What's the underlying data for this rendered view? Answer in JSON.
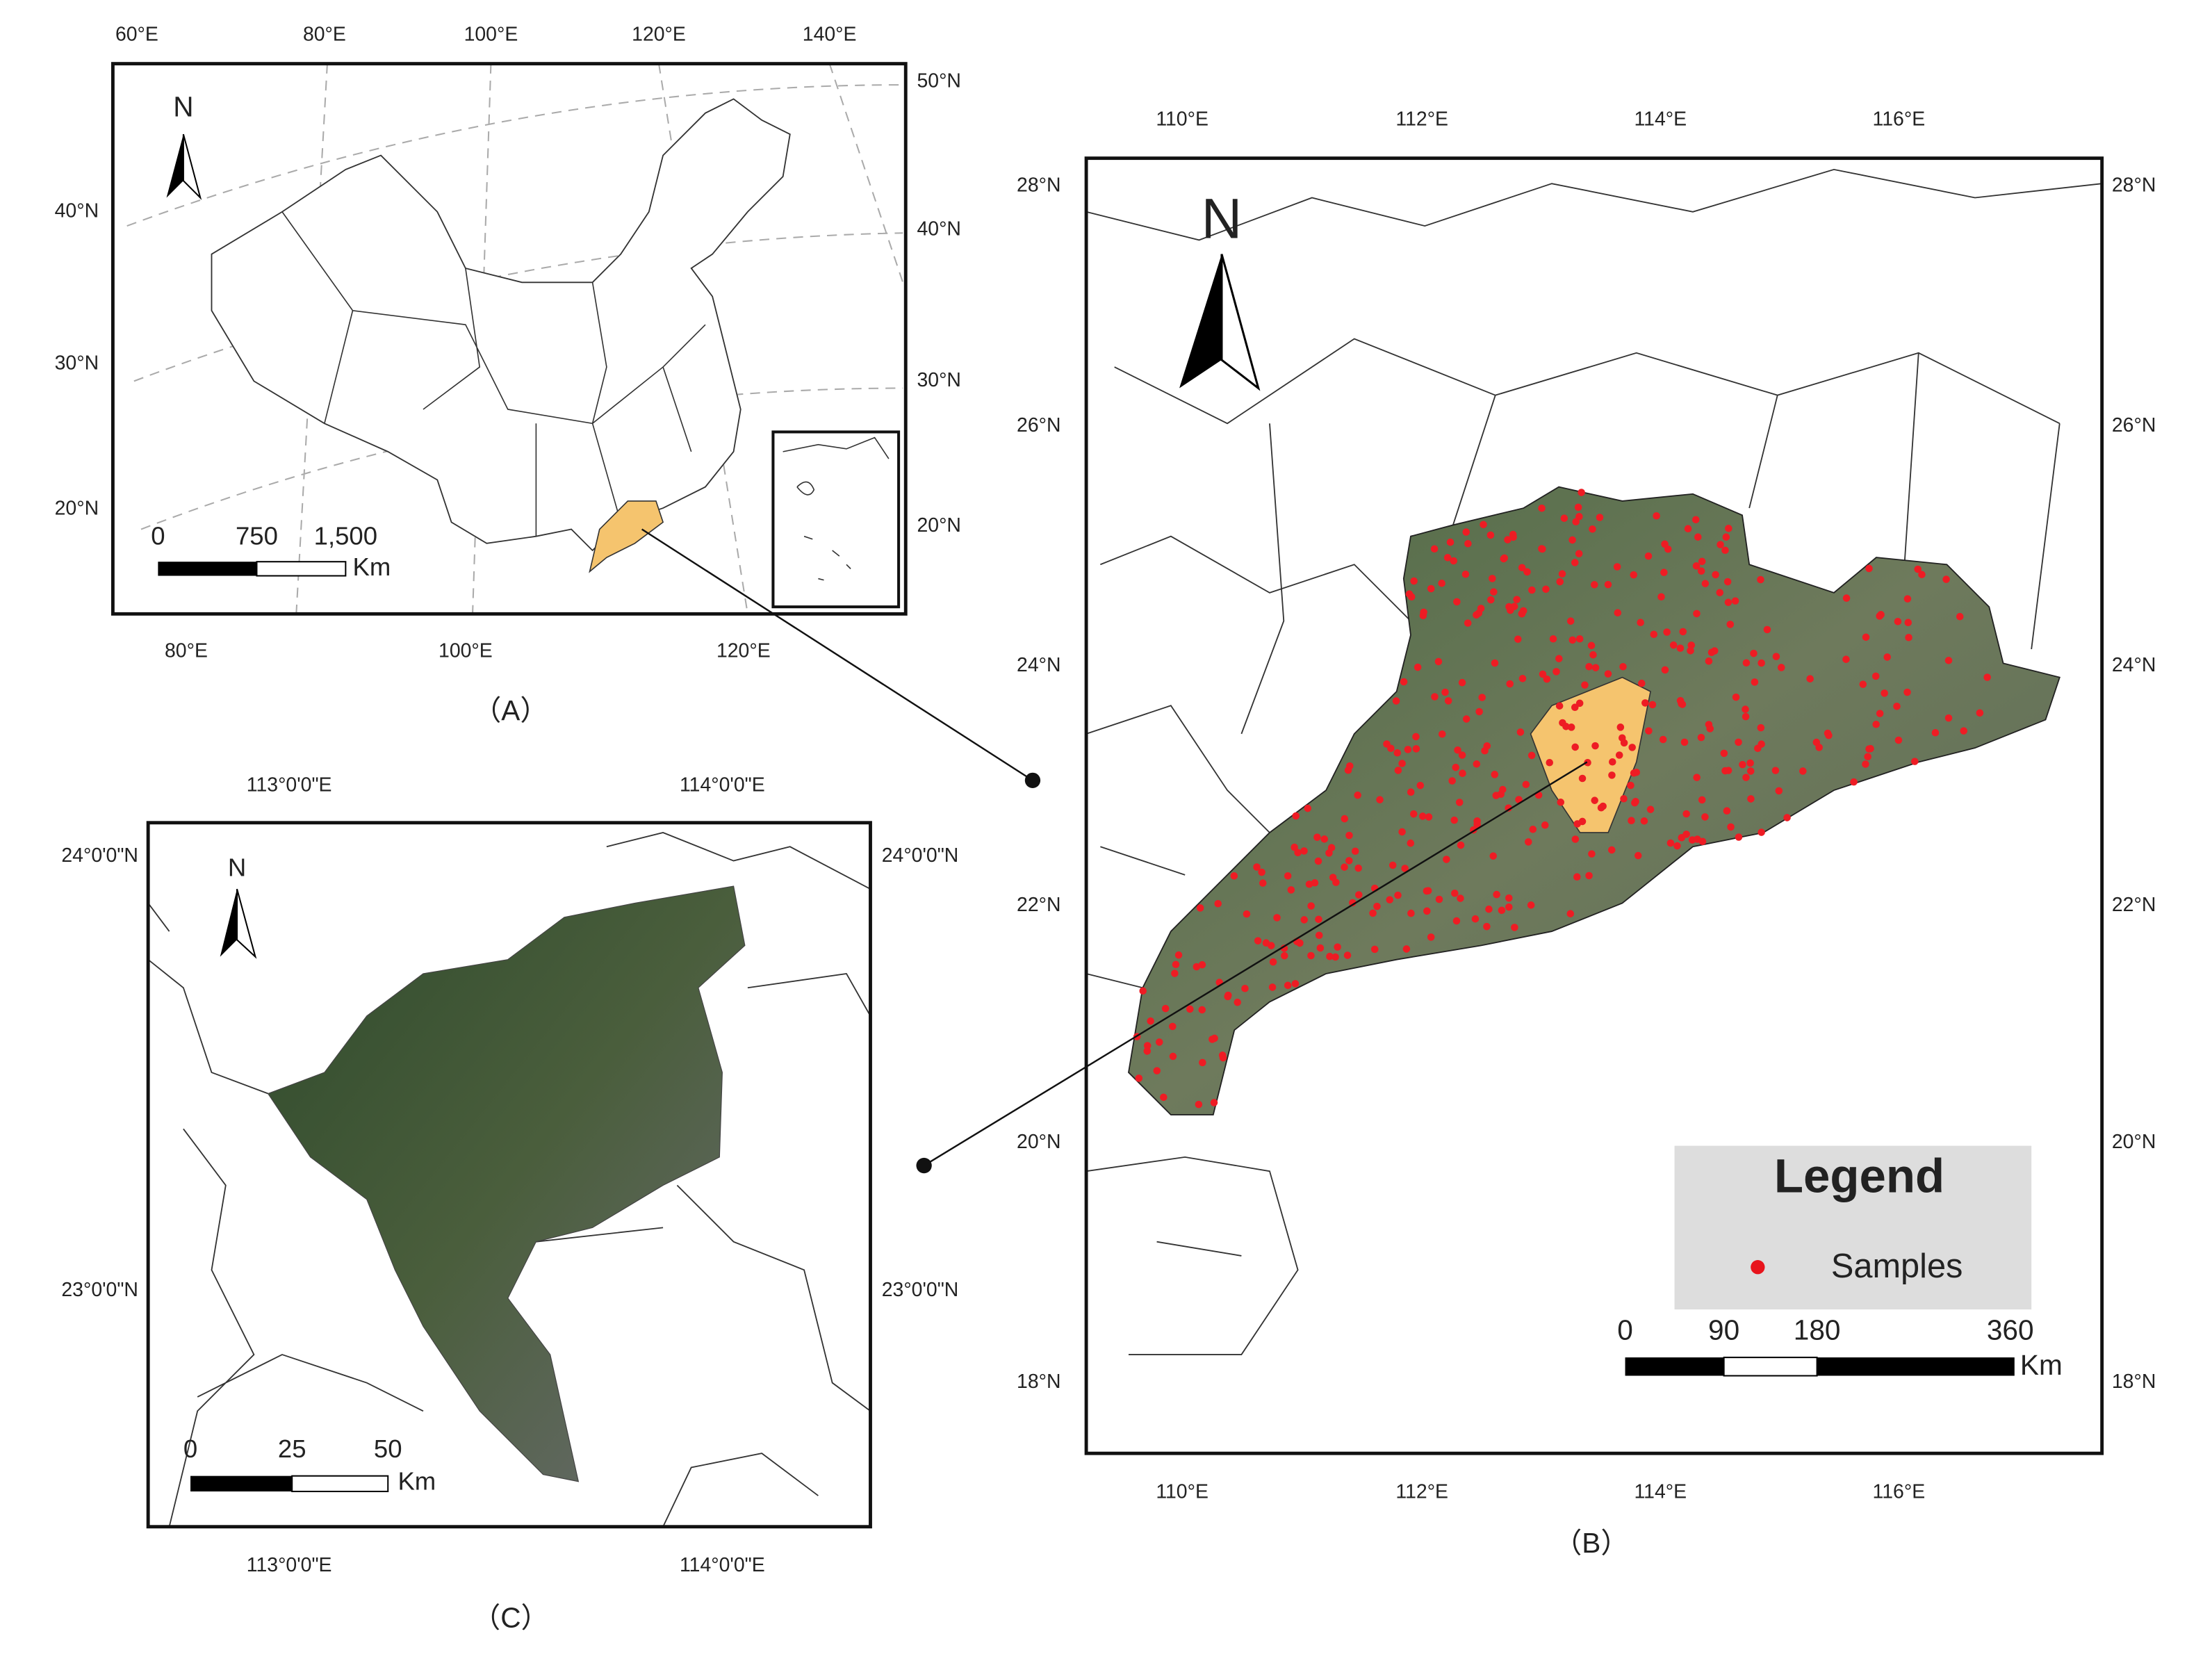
{
  "panels": [
    {
      "label": "（A）",
      "top_ticks": [
        "60°E",
        "80°E",
        "100°E",
        "120°E",
        "140°E"
      ],
      "right_ticks": [
        "50°N",
        "40°N",
        "30°N",
        "20°N"
      ],
      "left_ticks": [
        "40°N",
        "30°N",
        "20°N"
      ],
      "bottom_ticks": [
        "80°E",
        "100°E",
        "120°E"
      ],
      "north": "N",
      "scale": {
        "labels": [
          "0",
          "750",
          "1,500"
        ],
        "unit": "Km"
      }
    },
    {
      "label": "（B）",
      "top_ticks": [
        "110°E",
        "112°E",
        "114°E",
        "116°E"
      ],
      "left_ticks": [
        "28°N",
        "26°N",
        "24°N",
        "22°N",
        "20°N",
        "18°N"
      ],
      "right_ticks": [
        "28°N",
        "26°N",
        "24°N",
        "22°N",
        "20°N",
        "18°N"
      ],
      "bottom_ticks": [
        "110°E",
        "112°E",
        "114°E",
        "116°E"
      ],
      "north": "N",
      "legend": {
        "title": "Legend",
        "item": "Samples"
      },
      "scale": {
        "labels": [
          "0",
          "90",
          "180",
          "360"
        ],
        "unit": "Km"
      }
    },
    {
      "label": "（C）",
      "top_ticks": [
        "113°0'0\"E",
        "114°0'0\"E"
      ],
      "left_ticks": [
        "24°0'0\"N",
        "23°0'0\"N"
      ],
      "right_ticks": [
        "24°0'0\"N",
        "23°0'0\"N"
      ],
      "bottom_ticks": [
        "113°0'0\"E",
        "114°0'0\"E"
      ],
      "north": "N",
      "scale": {
        "labels": [
          "0",
          "25",
          "50"
        ],
        "unit": "Km"
      }
    }
  ]
}
